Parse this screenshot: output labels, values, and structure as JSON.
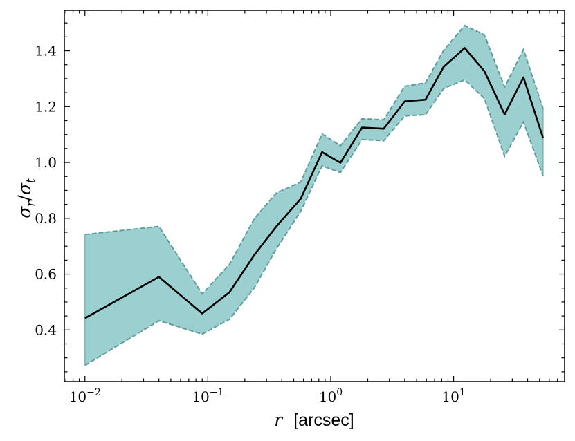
{
  "chart_data": {
    "type": "line",
    "xscale": "log",
    "xlim": [
      0.0068,
      80
    ],
    "ylim": [
      0.215,
      1.545
    ],
    "grid": false,
    "xlabel": {
      "symbol": "r",
      "unit": "[arcsec]"
    },
    "ylabel": {
      "numerator": "σ",
      "numerator_sub": "r",
      "denominator": "σ",
      "denominator_sub": "t"
    },
    "x_ticks": [
      {
        "value": 0.01,
        "base": "10",
        "exp": "−2"
      },
      {
        "value": 0.1,
        "base": "10",
        "exp": "−1"
      },
      {
        "value": 1,
        "base": "10",
        "exp": "0"
      },
      {
        "value": 10,
        "base": "10",
        "exp": "1"
      }
    ],
    "y_ticks": [
      {
        "value": 0.4,
        "label": "0.4"
      },
      {
        "value": 0.6,
        "label": "0.6"
      },
      {
        "value": 0.8,
        "label": "0.8"
      },
      {
        "value": 1.0,
        "label": "1.0"
      },
      {
        "value": 1.2,
        "label": "1.2"
      },
      {
        "value": 1.4,
        "label": "1.4"
      }
    ],
    "x": [
      0.01,
      0.04,
      0.09,
      0.15,
      0.24,
      0.36,
      0.57,
      0.85,
      1.2,
      1.8,
      2.7,
      4.0,
      5.9,
      8.3,
      12.3,
      17.8,
      26.0,
      37.0,
      53.5
    ],
    "y": [
      0.442,
      0.59,
      0.459,
      0.535,
      0.67,
      0.77,
      0.87,
      1.037,
      0.999,
      1.125,
      1.121,
      1.219,
      1.225,
      1.343,
      1.41,
      1.327,
      1.172,
      1.305,
      1.087
    ],
    "upper": [
      0.742,
      0.771,
      0.529,
      0.635,
      0.8,
      0.89,
      0.93,
      1.102,
      1.06,
      1.157,
      1.153,
      1.273,
      1.285,
      1.402,
      1.491,
      1.457,
      1.27,
      1.405,
      1.192
    ],
    "lower": [
      0.273,
      0.433,
      0.385,
      0.438,
      0.552,
      0.69,
      0.825,
      0.988,
      0.964,
      1.082,
      1.078,
      1.167,
      1.171,
      1.265,
      1.296,
      1.229,
      1.022,
      1.145,
      0.951
    ],
    "colors": {
      "line": "#000000",
      "band_fill": "#9cd0d0",
      "band_edge": "#5f9d9d"
    }
  }
}
